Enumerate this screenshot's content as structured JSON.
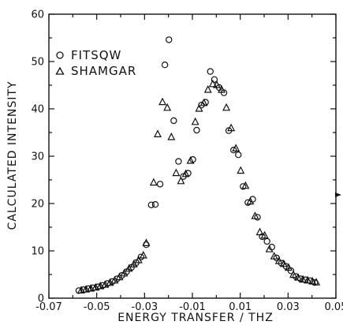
{
  "chart_data": {
    "type": "scatter",
    "xlabel": "ENERGY TRANSFER / THZ",
    "ylabel": "CALCULATED INTENSITY",
    "xlim": [
      -0.07,
      0.05
    ],
    "ylim": [
      0,
      60
    ],
    "xticks": [
      -0.07,
      -0.05,
      -0.03,
      -0.01,
      0.01,
      0.03,
      0.05
    ],
    "xtick_labels": [
      "-0.07",
      "-0.05",
      "-0.03",
      "-0.01",
      "0.01",
      "0.03",
      "0.05"
    ],
    "yticks": [
      0,
      10,
      20,
      30,
      40,
      50,
      60
    ],
    "ytick_labels": [
      "0",
      "10",
      "20",
      "30",
      "40",
      "50",
      "60"
    ],
    "grid": false,
    "legend_position": "top-left",
    "series": [
      {
        "name": "FITSQW",
        "marker": "circle",
        "points": [
          [
            -0.0575,
            1.6
          ],
          [
            -0.0555,
            1.8
          ],
          [
            -0.0535,
            2.0
          ],
          [
            -0.0515,
            2.2
          ],
          [
            -0.0495,
            2.4
          ],
          [
            -0.0475,
            2.7
          ],
          [
            -0.0455,
            3.1
          ],
          [
            -0.0435,
            3.5
          ],
          [
            -0.0415,
            4.1
          ],
          [
            -0.0395,
            4.8
          ],
          [
            -0.0375,
            5.6
          ],
          [
            -0.0355,
            6.5
          ],
          [
            -0.0335,
            7.5
          ],
          [
            -0.0315,
            8.7
          ],
          [
            -0.0293,
            11.3
          ],
          [
            -0.0272,
            19.7
          ],
          [
            -0.0255,
            19.8
          ],
          [
            -0.0235,
            24.1
          ],
          [
            -0.0215,
            49.3
          ],
          [
            -0.0198,
            54.6
          ],
          [
            -0.0178,
            37.5
          ],
          [
            -0.0158,
            28.9
          ],
          [
            -0.0138,
            25.7
          ],
          [
            -0.0118,
            26.4
          ],
          [
            -0.0098,
            29.3
          ],
          [
            -0.0082,
            35.5
          ],
          [
            -0.0062,
            40.8
          ],
          [
            -0.0045,
            41.4
          ],
          [
            -0.0025,
            47.9
          ],
          [
            -0.0008,
            46.2
          ],
          [
            0.0012,
            44.5
          ],
          [
            0.0032,
            43.4
          ],
          [
            0.0052,
            35.4
          ],
          [
            0.0072,
            31.3
          ],
          [
            0.0092,
            30.3
          ],
          [
            0.0112,
            23.6
          ],
          [
            0.0132,
            20.2
          ],
          [
            0.0152,
            20.9
          ],
          [
            0.0172,
            17.1
          ],
          [
            0.0192,
            13.0
          ],
          [
            0.0212,
            12.0
          ],
          [
            0.0232,
            10.8
          ],
          [
            0.0252,
            8.5
          ],
          [
            0.0272,
            7.4
          ],
          [
            0.0292,
            6.7
          ],
          [
            0.0312,
            5.8
          ],
          [
            0.0332,
            4.6
          ],
          [
            0.0352,
            4.1
          ],
          [
            0.0372,
            3.9
          ],
          [
            0.0392,
            3.7
          ],
          [
            0.0412,
            3.3
          ]
        ]
      },
      {
        "name": "SHAMGAR",
        "marker": "triangle",
        "points": [
          [
            -0.0565,
            1.7
          ],
          [
            -0.0545,
            1.9
          ],
          [
            -0.0525,
            2.1
          ],
          [
            -0.0505,
            2.3
          ],
          [
            -0.0485,
            2.6
          ],
          [
            -0.0465,
            2.9
          ],
          [
            -0.0445,
            3.3
          ],
          [
            -0.0425,
            3.8
          ],
          [
            -0.0405,
            4.5
          ],
          [
            -0.0385,
            5.3
          ],
          [
            -0.0365,
            6.3
          ],
          [
            -0.0345,
            7.2
          ],
          [
            -0.0325,
            8.1
          ],
          [
            -0.0305,
            9.1
          ],
          [
            -0.0293,
            11.7
          ],
          [
            -0.0262,
            24.5
          ],
          [
            -0.0245,
            34.7
          ],
          [
            -0.0225,
            41.5
          ],
          [
            -0.0205,
            40.3
          ],
          [
            -0.0188,
            34.1
          ],
          [
            -0.0168,
            26.5
          ],
          [
            -0.0148,
            24.8
          ],
          [
            -0.0128,
            26.3
          ],
          [
            -0.0108,
            29.1
          ],
          [
            -0.0088,
            37.3
          ],
          [
            -0.0072,
            40.1
          ],
          [
            -0.0052,
            41.3
          ],
          [
            -0.0035,
            44.1
          ],
          [
            -0.0015,
            45.3
          ],
          [
            0.0002,
            45.1
          ],
          [
            0.0022,
            44.1
          ],
          [
            0.0042,
            40.3
          ],
          [
            0.0062,
            36.0
          ],
          [
            0.0082,
            31.7
          ],
          [
            0.0102,
            27.0
          ],
          [
            0.0122,
            23.8
          ],
          [
            0.0142,
            20.5
          ],
          [
            0.0162,
            17.4
          ],
          [
            0.0182,
            14.0
          ],
          [
            0.0202,
            13.3
          ],
          [
            0.0222,
            10.4
          ],
          [
            0.0242,
            8.9
          ],
          [
            0.0262,
            7.9
          ],
          [
            0.0282,
            7.3
          ],
          [
            0.0302,
            6.5
          ],
          [
            0.0322,
            5.0
          ],
          [
            0.0342,
            4.4
          ],
          [
            0.0362,
            4.0
          ],
          [
            0.0382,
            3.8
          ],
          [
            0.0402,
            3.6
          ],
          [
            0.0418,
            3.4
          ]
        ]
      }
    ]
  }
}
